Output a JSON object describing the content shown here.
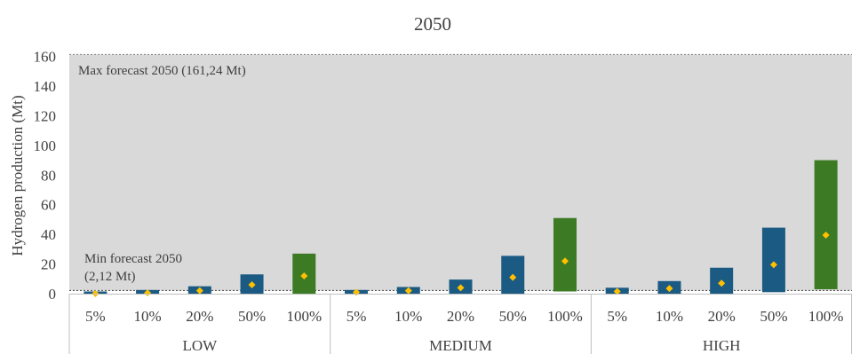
{
  "chart_data": {
    "type": "bar",
    "title": "2050",
    "ylabel": "Hydrogen production (Mt)",
    "xlabel": "",
    "ylim": [
      0,
      160
    ],
    "yticks": [
      0,
      20,
      40,
      60,
      80,
      100,
      120,
      140,
      160
    ],
    "grid": false,
    "legend": "none",
    "groups": [
      "LOW",
      "MEDIUM",
      "HIGH"
    ],
    "categories": [
      "5%",
      "10%",
      "20%",
      "50%",
      "100%"
    ],
    "bars": [
      {
        "group": "LOW",
        "category": "5%",
        "min": 0,
        "max": 1.5,
        "point": 0
      },
      {
        "group": "LOW",
        "category": "10%",
        "min": 0,
        "max": 2.5,
        "point": 0.5
      },
      {
        "group": "LOW",
        "category": "20%",
        "min": 0,
        "max": 5,
        "point": 2
      },
      {
        "group": "LOW",
        "category": "50%",
        "min": 0,
        "max": 13,
        "point": 6
      },
      {
        "group": "LOW",
        "category": "100%",
        "min": 0,
        "max": 27,
        "point": 12
      },
      {
        "group": "MEDIUM",
        "category": "5%",
        "min": 0,
        "max": 2.5,
        "point": 1
      },
      {
        "group": "MEDIUM",
        "category": "10%",
        "min": 0,
        "max": 4.5,
        "point": 2
      },
      {
        "group": "MEDIUM",
        "category": "20%",
        "min": 0,
        "max": 9.5,
        "point": 4
      },
      {
        "group": "MEDIUM",
        "category": "50%",
        "min": 0,
        "max": 25.5,
        "point": 11
      },
      {
        "group": "MEDIUM",
        "category": "100%",
        "min": 1.5,
        "max": 51,
        "point": 22
      },
      {
        "group": "HIGH",
        "category": "5%",
        "min": 0,
        "max": 4,
        "point": 1.5
      },
      {
        "group": "HIGH",
        "category": "10%",
        "min": 0,
        "max": 8.5,
        "point": 3.5
      },
      {
        "group": "HIGH",
        "category": "20%",
        "min": 0,
        "max": 17.5,
        "point": 7
      },
      {
        "group": "HIGH",
        "category": "50%",
        "min": 1,
        "max": 44.5,
        "point": 19.5
      },
      {
        "group": "HIGH",
        "category": "100%",
        "min": 3,
        "max": 90,
        "point": 39.5
      }
    ],
    "max_forecast": {
      "value": 161.24,
      "label": "Max forecast 2050 (161,24 Mt)"
    },
    "min_forecast": {
      "value": 2.12,
      "label_line1": "Min forecast 2050",
      "label_line2": "(2,12 Mt)"
    },
    "colors": {
      "band": "#d9d9d9",
      "bar_partial": "#1b5a82",
      "bar_full": "#3d7a24",
      "point": "#ffc000",
      "axis": "#bfbfbf",
      "text": "#404040"
    }
  }
}
